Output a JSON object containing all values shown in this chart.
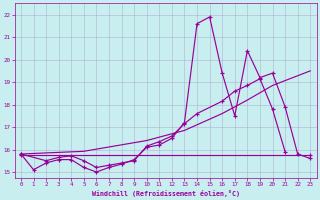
{
  "background_color": "#c8eef0",
  "grid_color": "#aaaacc",
  "line_color": "#990099",
  "xlabel": "Windchill (Refroidissement éolien,°C)",
  "ylim": [
    14.75,
    22.5
  ],
  "xlim": [
    -0.5,
    23.5
  ],
  "yticks": [
    15,
    16,
    17,
    18,
    19,
    20,
    21,
    22
  ],
  "xticks": [
    0,
    1,
    2,
    3,
    4,
    5,
    6,
    7,
    8,
    9,
    10,
    11,
    12,
    13,
    14,
    15,
    16,
    17,
    18,
    19,
    20,
    21,
    22,
    23
  ],
  "lw": 0.85,
  "ms": 3.0,
  "mew": 0.85,
  "line1_x": [
    0,
    1,
    2,
    3,
    4,
    5,
    6,
    7,
    8,
    9,
    10,
    11,
    12,
    13,
    14,
    15,
    16,
    17,
    18,
    19,
    20,
    21,
    22,
    23
  ],
  "line1_y": [
    15.8,
    15.1,
    15.4,
    15.55,
    15.55,
    15.2,
    15.0,
    15.2,
    15.35,
    15.55,
    16.1,
    16.2,
    16.5,
    17.2,
    21.6,
    21.9,
    19.4,
    17.5,
    20.4,
    19.2,
    19.4,
    17.9,
    15.8,
    15.6
  ],
  "line2_x": [
    0,
    23
  ],
  "line2_y": [
    15.75,
    15.75
  ],
  "line3_x": [
    0,
    2,
    3,
    4,
    5,
    6,
    7,
    8,
    9,
    10,
    11,
    12,
    13,
    14,
    16,
    17,
    18,
    19,
    20,
    21
  ],
  "line3_y": [
    15.8,
    15.5,
    15.65,
    15.72,
    15.5,
    15.2,
    15.3,
    15.4,
    15.5,
    16.15,
    16.35,
    16.6,
    17.15,
    17.6,
    18.15,
    18.6,
    18.85,
    19.15,
    17.8,
    15.9
  ],
  "line4_x": [
    0,
    5,
    10,
    13,
    16,
    18,
    20,
    23
  ],
  "line4_y": [
    15.8,
    15.92,
    16.4,
    16.85,
    17.6,
    18.2,
    18.85,
    19.5
  ]
}
